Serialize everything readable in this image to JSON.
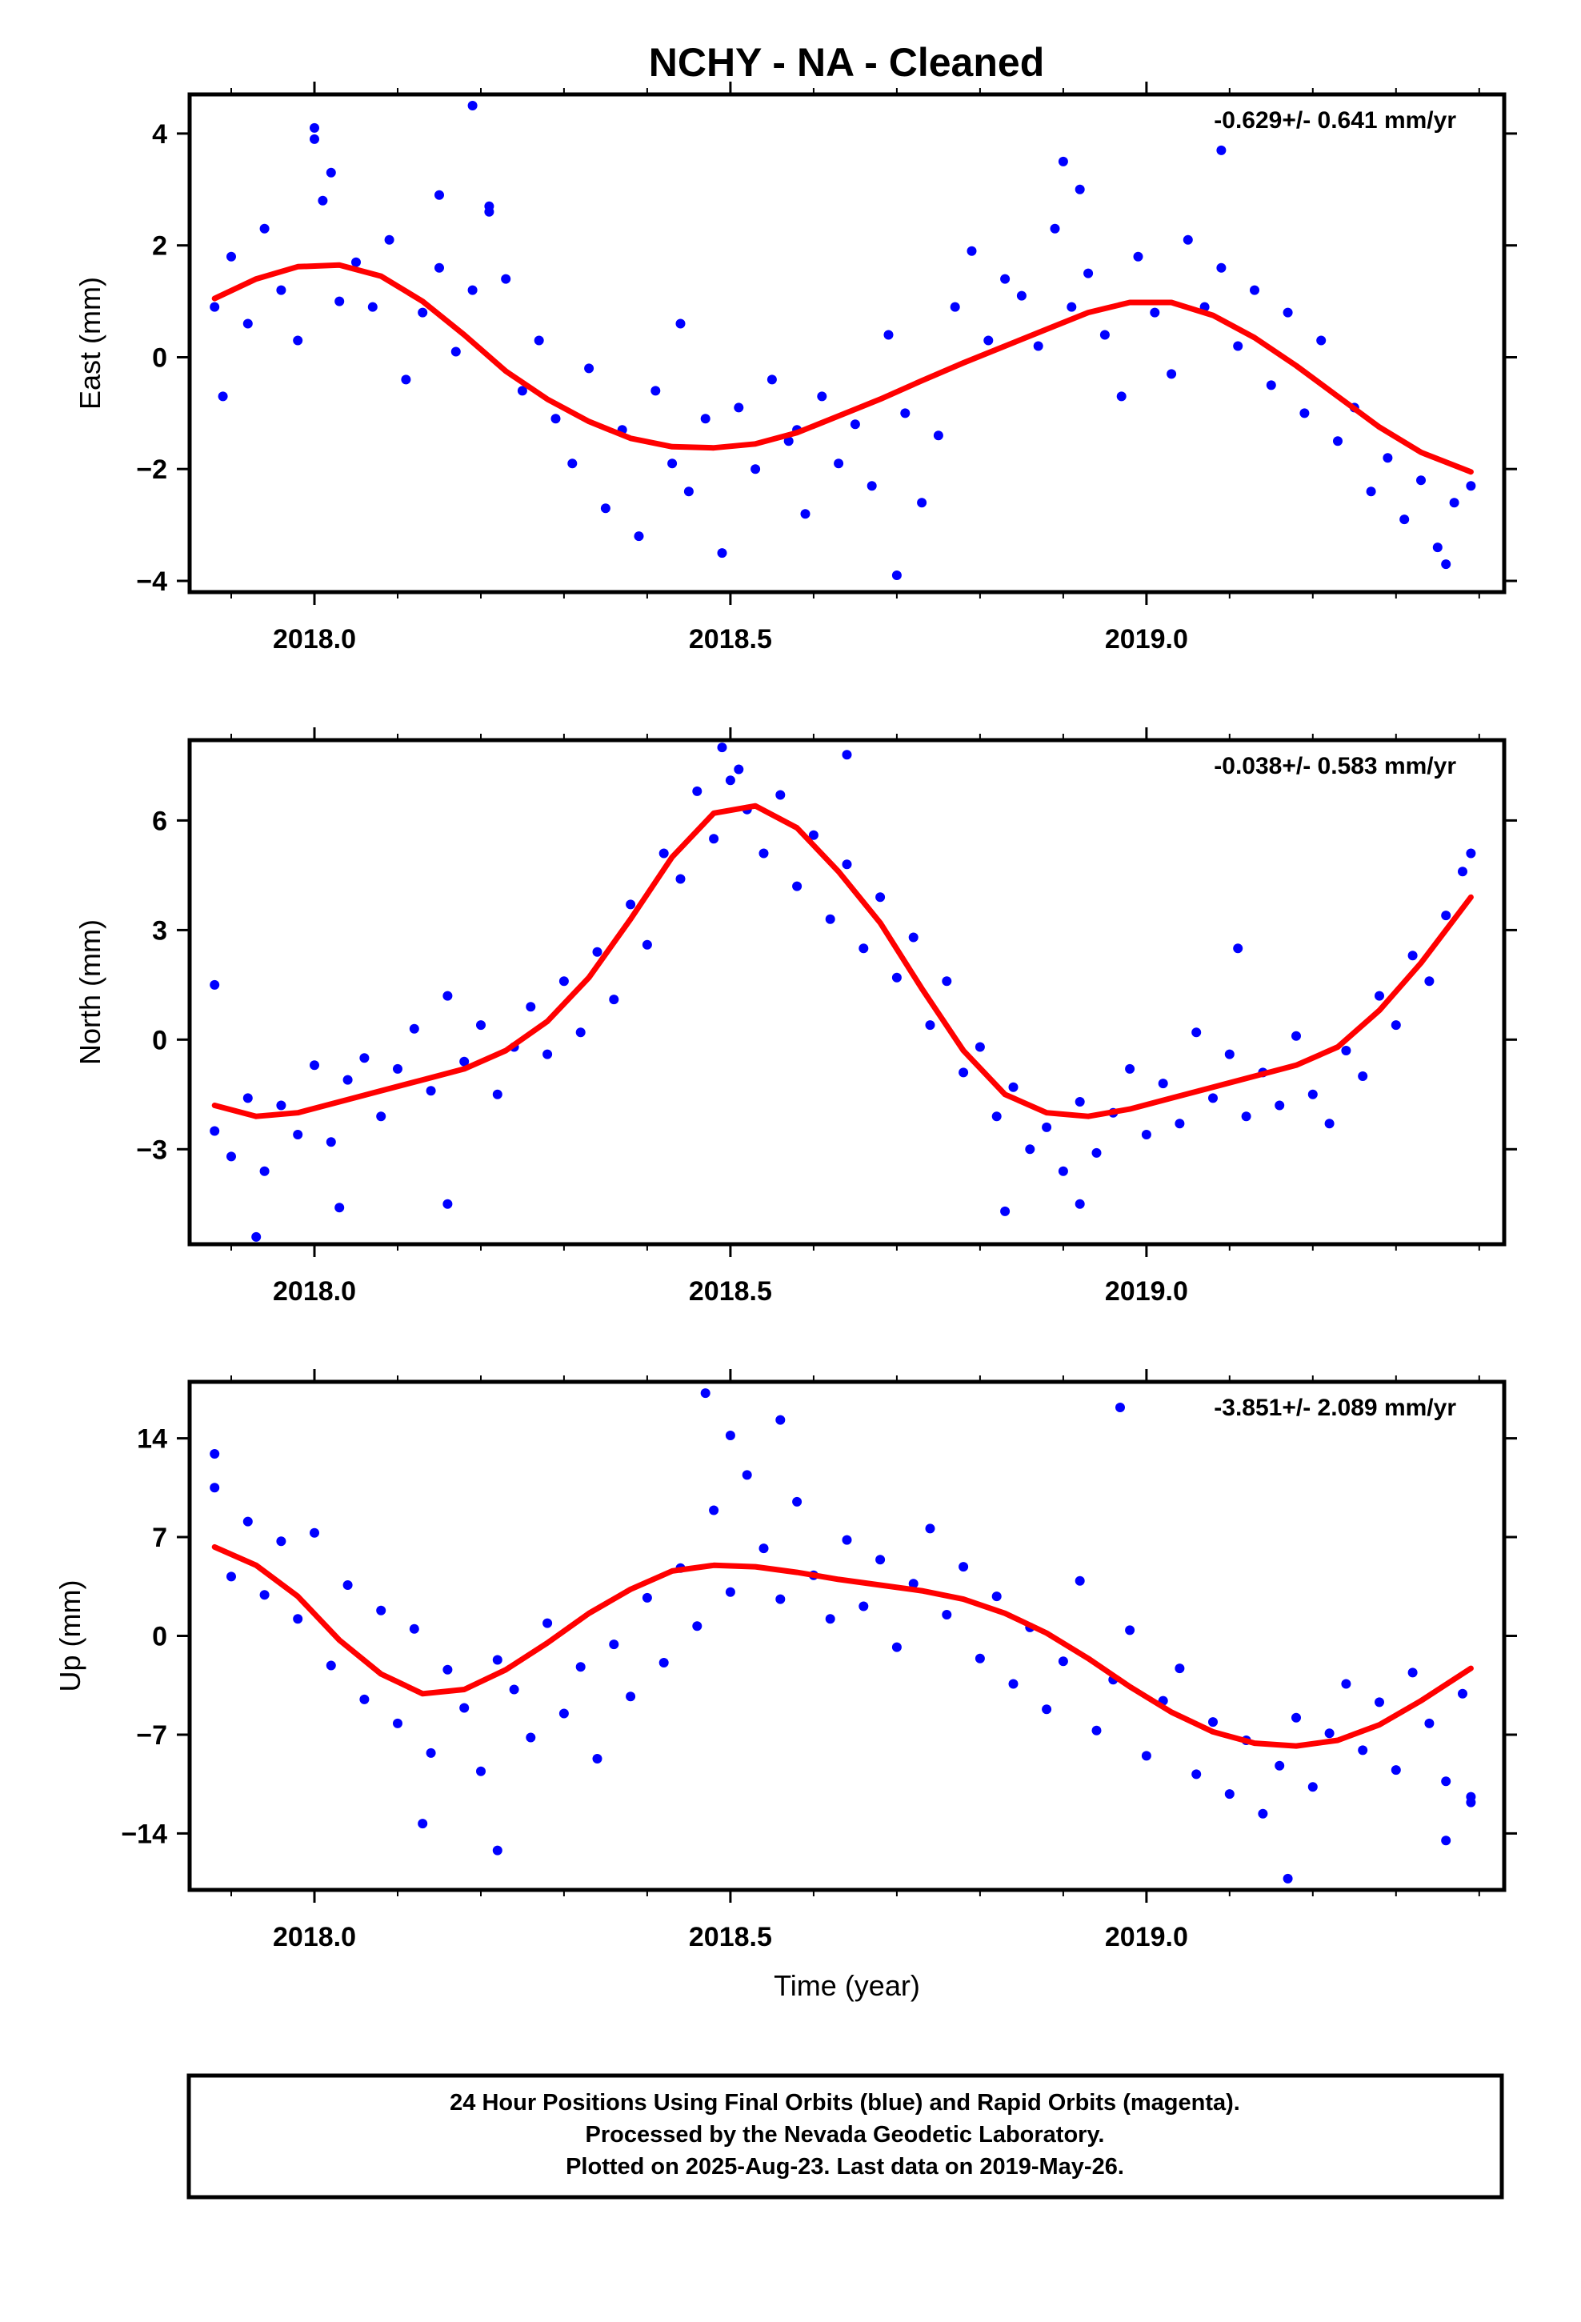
{
  "title": "NCHY  - NA - Cleaned",
  "colors": {
    "points": "#0000ff",
    "fit": "#ff0000",
    "rapid_points": "#ff00ff",
    "frame": "#000000"
  },
  "chart_data": [
    {
      "type": "scatter",
      "ylabel": "East (mm)",
      "rate_text": "-0.629+/- 0.641 mm/yr",
      "xlim": [
        2017.85,
        2019.43
      ],
      "ylim": [
        -4.2,
        4.7
      ],
      "x_ticks": [
        2018.0,
        2018.5,
        2019.0
      ],
      "x_tick_labels": [
        "2018.0",
        "2018.5",
        "2019.0"
      ],
      "y_ticks": [
        4,
        2,
        0,
        -2,
        -4
      ],
      "y_tick_labels": [
        "4",
        "2",
        "0",
        "−2",
        "−4"
      ],
      "fit": {
        "x": [
          2017.88,
          2017.93,
          2017.98,
          2018.03,
          2018.08,
          2018.13,
          2018.18,
          2018.23,
          2018.28,
          2018.33,
          2018.38,
          2018.43,
          2018.48,
          2018.53,
          2018.58,
          2018.63,
          2018.68,
          2018.73,
          2018.78,
          2018.83,
          2018.88,
          2018.93,
          2018.98,
          2019.03,
          2019.08,
          2019.13,
          2019.18,
          2019.23,
          2019.28,
          2019.33,
          2019.39
        ],
        "y": [
          1.05,
          1.4,
          1.62,
          1.65,
          1.45,
          1.0,
          0.4,
          -0.25,
          -0.75,
          -1.15,
          -1.45,
          -1.6,
          -1.62,
          -1.55,
          -1.35,
          -1.05,
          -0.75,
          -0.42,
          -0.1,
          0.2,
          0.5,
          0.8,
          0.98,
          0.98,
          0.75,
          0.35,
          -0.15,
          -0.7,
          -1.25,
          -1.7,
          -2.05
        ]
      },
      "points": {
        "x": [
          2017.88,
          2017.9,
          2017.92,
          2017.94,
          2017.96,
          2017.98,
          2018.0,
          2018.01,
          2018.03,
          2018.05,
          2018.07,
          2018.09,
          2018.11,
          2018.13,
          2018.15,
          2018.17,
          2018.19,
          2018.21,
          2018.23,
          2018.25,
          2018.27,
          2018.29,
          2018.31,
          2018.33,
          2018.35,
          2018.37,
          2018.39,
          2018.41,
          2018.43,
          2018.45,
          2018.47,
          2018.49,
          2018.51,
          2018.53,
          2018.55,
          2018.57,
          2018.59,
          2018.61,
          2018.63,
          2018.65,
          2018.67,
          2018.69,
          2018.71,
          2018.73,
          2018.75,
          2018.77,
          2018.79,
          2018.81,
          2018.83,
          2018.85,
          2018.87,
          2018.89,
          2018.91,
          2018.93,
          2018.95,
          2018.97,
          2018.99,
          2019.01,
          2019.03,
          2019.05,
          2019.07,
          2019.09,
          2019.11,
          2019.13,
          2019.15,
          2019.17,
          2019.19,
          2019.21,
          2019.23,
          2019.25,
          2019.27,
          2019.29,
          2019.31,
          2019.33,
          2019.35,
          2019.37,
          2019.39,
          2018.0,
          2018.02,
          2018.19,
          2018.21,
          2018.44,
          2018.58,
          2018.9,
          2018.92,
          2019.09,
          2019.36,
          2018.7,
          2017.89,
          2018.15
        ],
        "y": [
          0.9,
          1.8,
          0.6,
          2.3,
          1.2,
          0.3,
          3.9,
          2.8,
          1.0,
          1.7,
          0.9,
          2.1,
          -0.4,
          0.8,
          1.6,
          0.1,
          1.2,
          2.7,
          1.4,
          -0.6,
          0.3,
          -1.1,
          -1.9,
          -0.2,
          -2.7,
          -1.3,
          -3.2,
          -0.6,
          -1.9,
          -2.4,
          -1.1,
          -3.5,
          -0.9,
          -2.0,
          -0.4,
          -1.5,
          -2.8,
          -0.7,
          -1.9,
          -1.2,
          -2.3,
          0.4,
          -1.0,
          -2.6,
          -1.4,
          0.9,
          1.9,
          0.3,
          1.4,
          1.1,
          0.2,
          2.3,
          0.9,
          1.5,
          0.4,
          -0.7,
          1.8,
          0.8,
          -0.3,
          2.1,
          0.9,
          1.6,
          0.2,
          1.2,
          -0.5,
          0.8,
          -1.0,
          0.3,
          -1.5,
          -0.9,
          -2.4,
          -1.8,
          -2.9,
          -2.2,
          -3.4,
          -2.6,
          -2.3,
          4.1,
          3.3,
          4.5,
          2.6,
          0.6,
          -1.3,
          3.5,
          3.0,
          3.7,
          -3.7,
          -3.9,
          -0.7,
          2.9
        ]
      }
    },
    {
      "type": "scatter",
      "ylabel": "North (mm)",
      "rate_text": "-0.038+/- 0.583 mm/yr",
      "xlim": [
        2017.85,
        2019.43
      ],
      "ylim": [
        -5.6,
        8.2
      ],
      "x_ticks": [
        2018.0,
        2018.5,
        2019.0
      ],
      "x_tick_labels": [
        "2018.0",
        "2018.5",
        "2019.0"
      ],
      "y_ticks": [
        6,
        3,
        0,
        -3
      ],
      "y_tick_labels": [
        "6",
        "3",
        "0",
        "−3"
      ],
      "fit": {
        "x": [
          2017.88,
          2017.93,
          2017.98,
          2018.03,
          2018.08,
          2018.13,
          2018.18,
          2018.23,
          2018.28,
          2018.33,
          2018.38,
          2018.43,
          2018.48,
          2018.53,
          2018.58,
          2018.63,
          2018.68,
          2018.73,
          2018.78,
          2018.83,
          2018.88,
          2018.93,
          2018.98,
          2019.03,
          2019.08,
          2019.13,
          2019.18,
          2019.23,
          2019.28,
          2019.33,
          2019.39
        ],
        "y": [
          -1.8,
          -2.1,
          -2.0,
          -1.7,
          -1.4,
          -1.1,
          -0.8,
          -0.3,
          0.5,
          1.7,
          3.3,
          5.0,
          6.2,
          6.4,
          5.8,
          4.6,
          3.2,
          1.4,
          -0.3,
          -1.5,
          -2.0,
          -2.1,
          -1.9,
          -1.6,
          -1.3,
          -1.0,
          -0.7,
          -0.2,
          0.8,
          2.1,
          3.9
        ]
      },
      "points": {
        "x": [
          2017.88,
          2017.9,
          2017.92,
          2017.94,
          2017.96,
          2017.98,
          2018.0,
          2018.02,
          2018.04,
          2018.06,
          2018.08,
          2018.1,
          2018.12,
          2018.14,
          2018.16,
          2018.18,
          2018.2,
          2018.22,
          2018.24,
          2018.26,
          2018.28,
          2018.3,
          2018.32,
          2018.34,
          2018.36,
          2018.38,
          2018.4,
          2018.42,
          2018.44,
          2018.46,
          2018.48,
          2018.5,
          2018.52,
          2018.54,
          2018.56,
          2018.58,
          2018.6,
          2018.62,
          2018.64,
          2018.66,
          2018.68,
          2018.7,
          2018.72,
          2018.74,
          2018.76,
          2018.78,
          2018.8,
          2018.82,
          2018.84,
          2018.86,
          2018.88,
          2018.9,
          2018.92,
          2018.94,
          2018.96,
          2018.98,
          2019.0,
          2019.02,
          2019.04,
          2019.06,
          2019.08,
          2019.1,
          2019.12,
          2019.14,
          2019.16,
          2019.18,
          2019.2,
          2019.22,
          2019.24,
          2019.26,
          2019.28,
          2019.3,
          2019.32,
          2019.34,
          2019.36,
          2019.38,
          2019.39,
          2017.88,
          2017.93,
          2018.03,
          2018.16,
          2018.49,
          2018.51,
          2018.64,
          2018.83,
          2018.92,
          2019.11
        ],
        "y": [
          -2.5,
          -3.2,
          -1.6,
          -3.6,
          -1.8,
          -2.6,
          -0.7,
          -2.8,
          -1.1,
          -0.5,
          -2.1,
          -0.8,
          0.3,
          -1.4,
          1.2,
          -0.6,
          0.4,
          -1.5,
          -0.2,
          0.9,
          -0.4,
          1.6,
          0.2,
          2.4,
          1.1,
          3.7,
          2.6,
          5.1,
          4.4,
          6.8,
          5.5,
          7.1,
          6.3,
          5.1,
          6.7,
          4.2,
          5.6,
          3.3,
          4.8,
          2.5,
          3.9,
          1.7,
          2.8,
          0.4,
          1.6,
          -0.9,
          -0.2,
          -2.1,
          -1.3,
          -3.0,
          -2.4,
          -3.6,
          -1.7,
          -3.1,
          -2.0,
          -0.8,
          -2.6,
          -1.2,
          -2.3,
          0.2,
          -1.6,
          -0.4,
          -2.1,
          -0.9,
          -1.8,
          0.1,
          -1.5,
          -2.3,
          -0.3,
          -1.0,
          1.2,
          0.4,
          2.3,
          1.6,
          3.4,
          4.6,
          5.1,
          1.5,
          -5.4,
          -4.6,
          -4.5,
          8.0,
          7.4,
          7.8,
          -4.7,
          -4.5,
          2.5
        ]
      }
    },
    {
      "type": "scatter",
      "ylabel": "Up (mm)",
      "rate_text": "-3.851+/- 2.089 mm/yr",
      "xlim": [
        2017.85,
        2019.43
      ],
      "ylim": [
        -18,
        18
      ],
      "x_ticks": [
        2018.0,
        2018.5,
        2019.0
      ],
      "x_tick_labels": [
        "2018.0",
        "2018.5",
        "2019.0"
      ],
      "y_ticks": [
        14,
        7,
        0,
        -7,
        -14
      ],
      "y_tick_labels": [
        "14",
        "7",
        "0",
        "−7",
        "−14"
      ],
      "xlabel": "Time (year)",
      "fit": {
        "x": [
          2017.88,
          2017.93,
          2017.98,
          2018.03,
          2018.08,
          2018.13,
          2018.18,
          2018.23,
          2018.28,
          2018.33,
          2018.38,
          2018.43,
          2018.48,
          2018.53,
          2018.58,
          2018.63,
          2018.68,
          2018.73,
          2018.78,
          2018.83,
          2018.88,
          2018.93,
          2018.98,
          2019.03,
          2019.08,
          2019.13,
          2019.18,
          2019.23,
          2019.28,
          2019.33,
          2019.39
        ],
        "y": [
          6.3,
          5.0,
          2.8,
          -0.3,
          -2.7,
          -4.1,
          -3.8,
          -2.4,
          -0.5,
          1.6,
          3.3,
          4.6,
          5.0,
          4.9,
          4.5,
          4.0,
          3.6,
          3.2,
          2.6,
          1.6,
          0.2,
          -1.6,
          -3.6,
          -5.4,
          -6.8,
          -7.6,
          -7.8,
          -7.4,
          -6.3,
          -4.6,
          -2.3
        ]
      },
      "points": {
        "x": [
          2017.88,
          2017.9,
          2017.92,
          2017.94,
          2017.96,
          2017.98,
          2018.0,
          2018.02,
          2018.04,
          2018.06,
          2018.08,
          2018.1,
          2018.12,
          2018.14,
          2018.16,
          2018.18,
          2018.2,
          2018.22,
          2018.24,
          2018.26,
          2018.28,
          2018.3,
          2018.32,
          2018.34,
          2018.36,
          2018.38,
          2018.4,
          2018.42,
          2018.44,
          2018.46,
          2018.48,
          2018.5,
          2018.52,
          2018.54,
          2018.56,
          2018.58,
          2018.6,
          2018.62,
          2018.64,
          2018.66,
          2018.68,
          2018.7,
          2018.72,
          2018.74,
          2018.76,
          2018.78,
          2018.8,
          2018.82,
          2018.84,
          2018.86,
          2018.88,
          2018.9,
          2018.92,
          2018.94,
          2018.96,
          2018.98,
          2019.0,
          2019.02,
          2019.04,
          2019.06,
          2019.08,
          2019.1,
          2019.12,
          2019.14,
          2019.16,
          2019.18,
          2019.2,
          2019.22,
          2019.24,
          2019.26,
          2019.28,
          2019.3,
          2019.32,
          2019.34,
          2019.36,
          2019.38,
          2019.39,
          2017.88,
          2018.13,
          2018.22,
          2018.47,
          2018.5,
          2018.56,
          2019.17,
          2019.36,
          2019.39
        ],
        "y": [
          10.5,
          4.2,
          8.1,
          2.9,
          6.7,
          1.2,
          7.3,
          -2.1,
          3.6,
          -4.5,
          1.8,
          -6.2,
          0.5,
          -8.3,
          -2.4,
          -5.1,
          -9.6,
          -1.7,
          -3.8,
          -7.2,
          0.9,
          -5.5,
          -2.2,
          -8.7,
          -0.6,
          -4.3,
          2.7,
          -1.9,
          4.8,
          0.7,
          8.9,
          3.1,
          11.4,
          6.2,
          2.6,
          9.5,
          4.3,
          1.2,
          6.8,
          2.1,
          5.4,
          -0.8,
          3.7,
          7.6,
          1.5,
          4.9,
          -1.6,
          2.8,
          -3.4,
          0.6,
          -5.2,
          -1.8,
          3.9,
          -6.7,
          -3.1,
          0.4,
          -8.5,
          -4.6,
          -2.3,
          -9.8,
          -6.1,
          -11.2,
          -7.4,
          -12.6,
          -9.2,
          -5.8,
          -10.7,
          -6.9,
          -3.4,
          -8.1,
          -4.7,
          -9.5,
          -2.6,
          -6.2,
          -10.3,
          -4.1,
          -11.4,
          12.9,
          -13.3,
          -15.2,
          17.2,
          14.2,
          15.3,
          -17.2,
          -14.5,
          -11.8
        ]
      }
    }
  ],
  "caption": {
    "line1": "24 Hour Positions Using Final Orbits (blue) and Rapid Orbits (magenta).",
    "line2": "Processed by the Nevada Geodetic Laboratory.",
    "line3": "Plotted on 2025-Aug-23. Last data on 2019-May-26."
  }
}
